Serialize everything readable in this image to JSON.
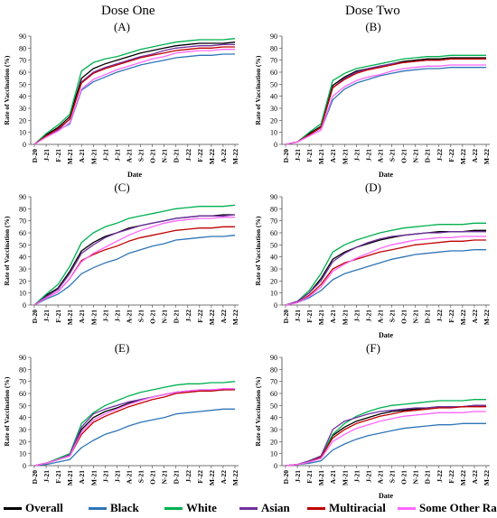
{
  "header": {
    "left_title": "Dose One",
    "right_title": "Dose Two"
  },
  "legend": [
    {
      "name": "Overall",
      "color": "#000000"
    },
    {
      "name": "Black",
      "color": "#2e75b6"
    },
    {
      "name": "White",
      "color": "#00b050"
    },
    {
      "name": "Asian",
      "color": "#7030a0"
    },
    {
      "name": "Multiracial",
      "color": "#c00000"
    },
    {
      "name": "Some Other Races",
      "color": "#ff66ff"
    }
  ],
  "chart_data": [
    {
      "id": "A",
      "label": "(A)",
      "type": "line",
      "xlabel": "Date",
      "ylabel": "Rate of Vaccination (%)",
      "ylim": [
        0,
        90
      ],
      "yticks": [
        0,
        10,
        20,
        30,
        40,
        50,
        60,
        70,
        80,
        90
      ],
      "x": [
        "D-20",
        "J-21",
        "F-21",
        "M-21",
        "A-21",
        "M-21",
        "J-21",
        "J-21",
        "A-21",
        "S-21",
        "O-21",
        "N-21",
        "D-21",
        "J-22",
        "F-22",
        "M-22",
        "A-22",
        "M-22"
      ],
      "series": [
        {
          "name": "Overall",
          "values": [
            0,
            8,
            14,
            23,
            55,
            63,
            67,
            70,
            73,
            76,
            78,
            80,
            82,
            83,
            84,
            84,
            84,
            85
          ]
        },
        {
          "name": "Black",
          "values": [
            0,
            7,
            12,
            17,
            45,
            52,
            56,
            60,
            63,
            66,
            68,
            70,
            72,
            73,
            74,
            74,
            75,
            75
          ]
        },
        {
          "name": "White",
          "values": [
            0,
            9,
            16,
            25,
            61,
            68,
            71,
            73,
            76,
            79,
            81,
            83,
            85,
            86,
            87,
            87,
            87,
            88
          ]
        },
        {
          "name": "Asian",
          "values": [
            0,
            7,
            12,
            21,
            52,
            60,
            64,
            67,
            70,
            73,
            75,
            78,
            80,
            81,
            82,
            82,
            83,
            83
          ]
        },
        {
          "name": "Multiracial",
          "values": [
            0,
            7,
            13,
            21,
            51,
            59,
            63,
            66,
            69,
            72,
            74,
            76,
            78,
            79,
            80,
            80,
            81,
            81
          ]
        },
        {
          "name": "Some Other Races",
          "values": [
            0,
            6,
            11,
            18,
            46,
            54,
            58,
            62,
            65,
            68,
            71,
            73,
            76,
            77,
            78,
            78,
            79,
            79
          ]
        }
      ]
    },
    {
      "id": "B",
      "label": "(B)",
      "type": "line",
      "xlabel": "Date",
      "ylabel": "Rate of Vaccination (%)",
      "ylim": [
        0,
        90
      ],
      "yticks": [
        0,
        10,
        20,
        30,
        40,
        50,
        60,
        70,
        80,
        90
      ],
      "x": [
        "D-20",
        "J-21",
        "F-21",
        "M-21",
        "A-21",
        "M-21",
        "J-21",
        "J-21",
        "A-21",
        "S-21",
        "O-21",
        "N-21",
        "D-21",
        "J-22",
        "F-22",
        "M-22",
        "A-22",
        "M-22"
      ],
      "series": [
        {
          "name": "Overall",
          "values": [
            0,
            2,
            9,
            15,
            49,
            56,
            61,
            63,
            65,
            67,
            69,
            70,
            71,
            71,
            72,
            72,
            72,
            72
          ]
        },
        {
          "name": "Black",
          "values": [
            0,
            2,
            7,
            12,
            37,
            46,
            51,
            54,
            57,
            59,
            61,
            62,
            63,
            63,
            64,
            64,
            64,
            64
          ]
        },
        {
          "name": "White",
          "values": [
            0,
            2,
            10,
            17,
            53,
            59,
            63,
            65,
            67,
            69,
            71,
            72,
            73,
            73,
            74,
            74,
            74,
            74
          ]
        },
        {
          "name": "Asian",
          "values": [
            0,
            2,
            8,
            14,
            47,
            55,
            60,
            63,
            65,
            67,
            68,
            69,
            70,
            70,
            71,
            71,
            71,
            71
          ]
        },
        {
          "name": "Multiracial",
          "values": [
            0,
            2,
            8,
            14,
            47,
            54,
            59,
            62,
            64,
            66,
            68,
            69,
            70,
            70,
            71,
            71,
            71,
            71
          ]
        },
        {
          "name": "Some Other Races",
          "values": [
            0,
            2,
            7,
            12,
            40,
            48,
            53,
            56,
            58,
            61,
            63,
            64,
            65,
            65,
            66,
            66,
            66,
            66
          ]
        }
      ]
    },
    {
      "id": "C",
      "label": "(C)",
      "type": "line",
      "xlabel": "",
      "ylabel": "Rate of Vaccination (%)",
      "ylim": [
        0,
        90
      ],
      "yticks": [
        0,
        10,
        20,
        30,
        40,
        50,
        60,
        70,
        80,
        90
      ],
      "x": [
        "D-20",
        "J-21",
        "F-21",
        "M-21",
        "A-21",
        "M-21",
        "J-21",
        "J-21",
        "A-21",
        "S-21",
        "O-21",
        "N-21",
        "D-21",
        "J-22",
        "F-22",
        "M-22",
        "A-22",
        "M-22"
      ],
      "series": [
        {
          "name": "Overall",
          "values": [
            0,
            8,
            14,
            28,
            45,
            52,
            57,
            60,
            64,
            66,
            68,
            70,
            72,
            73,
            74,
            74,
            75,
            75
          ]
        },
        {
          "name": "Black",
          "values": [
            0,
            5,
            9,
            16,
            26,
            31,
            35,
            38,
            43,
            46,
            49,
            51,
            54,
            55,
            56,
            57,
            57,
            58
          ]
        },
        {
          "name": "White",
          "values": [
            0,
            9,
            17,
            32,
            52,
            60,
            65,
            68,
            72,
            74,
            76,
            78,
            80,
            81,
            82,
            82,
            82,
            83
          ]
        },
        {
          "name": "Asian",
          "values": [
            0,
            7,
            13,
            26,
            43,
            50,
            56,
            60,
            63,
            66,
            68,
            70,
            72,
            73,
            74,
            74,
            74,
            75
          ]
        },
        {
          "name": "Multiracial",
          "values": [
            0,
            6,
            11,
            22,
            37,
            42,
            46,
            49,
            53,
            56,
            58,
            60,
            62,
            63,
            64,
            64,
            65,
            65
          ]
        },
        {
          "name": "Some Other Races",
          "values": [
            0,
            6,
            11,
            22,
            36,
            43,
            48,
            53,
            58,
            62,
            65,
            68,
            70,
            71,
            72,
            72,
            73,
            73
          ]
        }
      ]
    },
    {
      "id": "D",
      "label": "(D)",
      "type": "line",
      "xlabel": "Date",
      "ylabel": "Rate of Vaccination (%)",
      "ylim": [
        0,
        90
      ],
      "yticks": [
        0,
        10,
        20,
        30,
        40,
        50,
        60,
        70,
        80,
        90
      ],
      "x": [
        "D-20",
        "J-21",
        "F-21",
        "M-21",
        "A-21",
        "M-21",
        "J-21",
        "J-21",
        "A-21",
        "S-21",
        "O-21",
        "N-21",
        "D-21",
        "J-22",
        "F-22",
        "M-22",
        "A-22",
        "M-22"
      ],
      "series": [
        {
          "name": "Overall",
          "values": [
            0,
            3,
            10,
            22,
            38,
            44,
            48,
            51,
            54,
            56,
            58,
            59,
            60,
            61,
            61,
            61,
            62,
            62
          ]
        },
        {
          "name": "Black",
          "values": [
            0,
            2,
            6,
            12,
            21,
            26,
            29,
            32,
            35,
            38,
            40,
            42,
            43,
            44,
            45,
            45,
            46,
            46
          ]
        },
        {
          "name": "White",
          "values": [
            0,
            3,
            12,
            26,
            44,
            50,
            54,
            57,
            60,
            62,
            64,
            65,
            66,
            67,
            67,
            67,
            68,
            68
          ]
        },
        {
          "name": "Asian",
          "values": [
            0,
            3,
            10,
            20,
            36,
            43,
            48,
            52,
            55,
            57,
            58,
            59,
            60,
            60,
            61,
            61,
            61,
            61
          ]
        },
        {
          "name": "Multiracial",
          "values": [
            0,
            2,
            8,
            17,
            30,
            35,
            38,
            41,
            44,
            46,
            48,
            50,
            51,
            52,
            53,
            53,
            54,
            54
          ]
        },
        {
          "name": "Some Other Races",
          "values": [
            0,
            2,
            7,
            15,
            28,
            34,
            39,
            43,
            47,
            50,
            52,
            54,
            55,
            56,
            56,
            57,
            57,
            57
          ]
        }
      ]
    },
    {
      "id": "E",
      "label": "(E)",
      "type": "line",
      "xlabel": "",
      "ylabel": "Rate of Vaccination (%)",
      "ylim": [
        0,
        90
      ],
      "yticks": [
        0,
        10,
        20,
        30,
        40,
        50,
        60,
        70,
        80,
        90
      ],
      "x": [
        "D-20",
        "J-21",
        "F-21",
        "M-21",
        "A-21",
        "M-21",
        "J-21",
        "J-21",
        "A-21",
        "S-21",
        "O-21",
        "N-21",
        "D-21",
        "J-22",
        "F-22",
        "M-22",
        "A-22",
        "M-22"
      ],
      "series": [
        {
          "name": "Overall",
          "values": [
            0,
            2,
            5,
            9,
            30,
            40,
            45,
            48,
            52,
            55,
            57,
            59,
            61,
            62,
            62,
            63,
            63,
            64
          ]
        },
        {
          "name": "Black",
          "values": [
            0,
            1,
            3,
            5,
            15,
            21,
            26,
            29,
            33,
            36,
            38,
            40,
            43,
            44,
            45,
            46,
            47,
            47
          ]
        },
        {
          "name": "White",
          "values": [
            0,
            2,
            6,
            10,
            35,
            44,
            50,
            54,
            58,
            61,
            63,
            65,
            67,
            68,
            68,
            69,
            69,
            70
          ]
        },
        {
          "name": "Asian",
          "values": [
            0,
            2,
            5,
            9,
            32,
            43,
            47,
            50,
            53,
            55,
            57,
            59,
            61,
            62,
            63,
            63,
            63,
            64
          ]
        },
        {
          "name": "Multiracial",
          "values": [
            0,
            2,
            5,
            8,
            26,
            36,
            41,
            45,
            49,
            52,
            55,
            57,
            60,
            61,
            62,
            62,
            63,
            63
          ]
        },
        {
          "name": "Some Other Races",
          "values": [
            0,
            2,
            5,
            8,
            28,
            38,
            43,
            47,
            51,
            54,
            57,
            59,
            61,
            62,
            63,
            63,
            64,
            64
          ]
        }
      ]
    },
    {
      "id": "F",
      "label": "(F)",
      "type": "line",
      "xlabel": "Date",
      "ylabel": "Rate of Vaccination (%)",
      "ylim": [
        0,
        90
      ],
      "yticks": [
        0,
        10,
        20,
        30,
        40,
        50,
        60,
        70,
        80,
        90
      ],
      "x": [
        "D-20",
        "J-21",
        "F-21",
        "M-21",
        "A-21",
        "M-21",
        "J-21",
        "J-21",
        "A-21",
        "S-21",
        "O-21",
        "N-21",
        "D-21",
        "J-22",
        "F-22",
        "M-22",
        "A-22",
        "M-22"
      ],
      "series": [
        {
          "name": "Overall",
          "values": [
            0,
            1,
            4,
            8,
            25,
            32,
            37,
            40,
            43,
            45,
            46,
            47,
            48,
            49,
            49,
            49,
            50,
            50
          ]
        },
        {
          "name": "Black",
          "values": [
            0,
            1,
            2,
            4,
            13,
            18,
            22,
            25,
            27,
            29,
            31,
            32,
            33,
            34,
            34,
            35,
            35,
            35
          ]
        },
        {
          "name": "White",
          "values": [
            0,
            1,
            4,
            8,
            26,
            35,
            41,
            45,
            48,
            50,
            51,
            52,
            53,
            54,
            54,
            54,
            55,
            55
          ]
        },
        {
          "name": "Asian",
          "values": [
            0,
            1,
            4,
            8,
            30,
            37,
            40,
            43,
            45,
            46,
            47,
            48,
            48,
            49,
            49,
            49,
            50,
            50
          ]
        },
        {
          "name": "Multiracial",
          "values": [
            0,
            1,
            3,
            7,
            23,
            30,
            35,
            38,
            41,
            43,
            45,
            46,
            47,
            48,
            48,
            49,
            49,
            49
          ]
        },
        {
          "name": "Some Other Races",
          "values": [
            0,
            1,
            3,
            6,
            20,
            26,
            31,
            34,
            37,
            39,
            41,
            42,
            43,
            44,
            44,
            44,
            45,
            45
          ]
        }
      ]
    }
  ]
}
